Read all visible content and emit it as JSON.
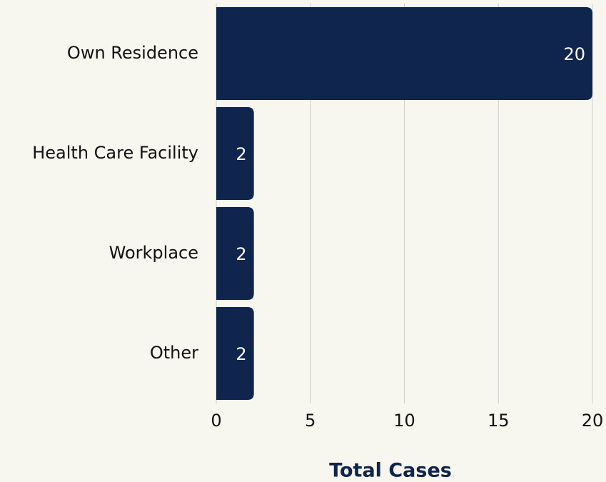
{
  "chart_data": {
    "type": "bar",
    "orientation": "horizontal",
    "categories": [
      "Own Residence",
      "Health Care Facility",
      "Workplace",
      "Other"
    ],
    "values": [
      20,
      2,
      2,
      2
    ],
    "color": "#0f254d",
    "xlabel": "Total Cases",
    "xlim": [
      0,
      20
    ],
    "xticks": [
      0,
      5,
      10,
      15,
      20
    ],
    "grid": true
  }
}
